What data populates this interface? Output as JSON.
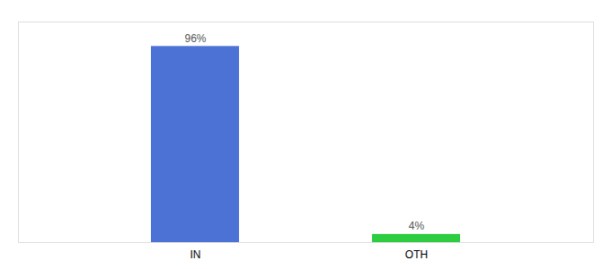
{
  "chart_data": {
    "type": "bar",
    "categories": [
      "IN",
      "OTH"
    ],
    "values": [
      96,
      4
    ],
    "value_labels": [
      "96%",
      "4%"
    ],
    "colors": [
      "#4b72d4",
      "#2ecc40"
    ],
    "ylim": [
      0,
      108
    ],
    "data_labels": true,
    "tick_labels": "x"
  }
}
